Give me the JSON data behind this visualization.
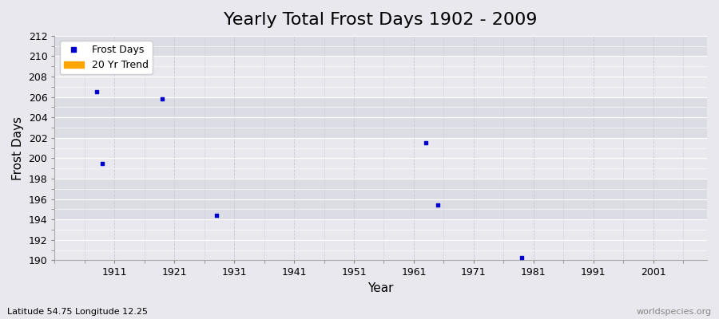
{
  "title": "Yearly Total Frost Days 1902 - 2009",
  "xlabel": "Year",
  "ylabel": "Frost Days",
  "xlim": [
    1901,
    2010
  ],
  "ylim": [
    190,
    212
  ],
  "yticks": [
    190,
    192,
    194,
    196,
    198,
    200,
    202,
    204,
    206,
    208,
    210,
    212
  ],
  "xticks": [
    1911,
    1921,
    1931,
    1941,
    1951,
    1961,
    1971,
    1981,
    1991,
    2001
  ],
  "scatter_x": [
    1908,
    1909,
    1919,
    1928,
    1963,
    1965,
    1979
  ],
  "scatter_y": [
    206.5,
    199.5,
    205.8,
    194.4,
    201.5,
    195.4,
    190.3
  ],
  "point_color": "#0000cc",
  "trend_color": "#FFA500",
  "bg_light": "#e8e8ee",
  "bg_dark": "#dcdce4",
  "grid_h_color": "#ffffff",
  "grid_v_color": "#c8c8d4",
  "legend_labels": [
    "Frost Days",
    "20 Yr Trend"
  ],
  "footnote_left": "Latitude 54.75 Longitude 12.25",
  "footnote_right": "worldspecies.org",
  "title_fontsize": 16,
  "axis_label_fontsize": 11,
  "tick_fontsize": 9,
  "footnote_fontsize": 8
}
